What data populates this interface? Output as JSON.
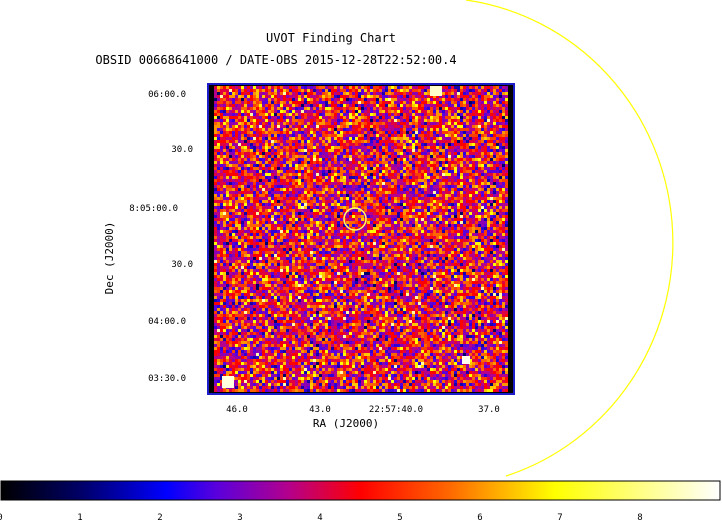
{
  "chart_data": {
    "type": "heatmap",
    "title": "UVOT Finding Chart",
    "subtitle": "OBSID 00668641000 / DATE-OBS 2015-12-28T22:52:00.4",
    "xlabel": "RA (J2000)",
    "ylabel": "Dec (J2000)",
    "x_ticks": [
      "46.0",
      "43.0",
      "22:57:40.0",
      "37.0"
    ],
    "y_ticks": [
      "06:00.0",
      "30.0",
      "8:05:00.0",
      "30.0",
      "04:00.0",
      "03:30.0"
    ],
    "colorbar": {
      "ticks": [
        "0",
        "1",
        "2",
        "3",
        "4",
        "5",
        "6",
        "7",
        "8"
      ],
      "range": [
        0,
        8.9
      ]
    },
    "colors": {
      "overlay_circle": "#ffff00",
      "frame": "#1c1cc8",
      "source_marker": "#ffff66"
    }
  }
}
